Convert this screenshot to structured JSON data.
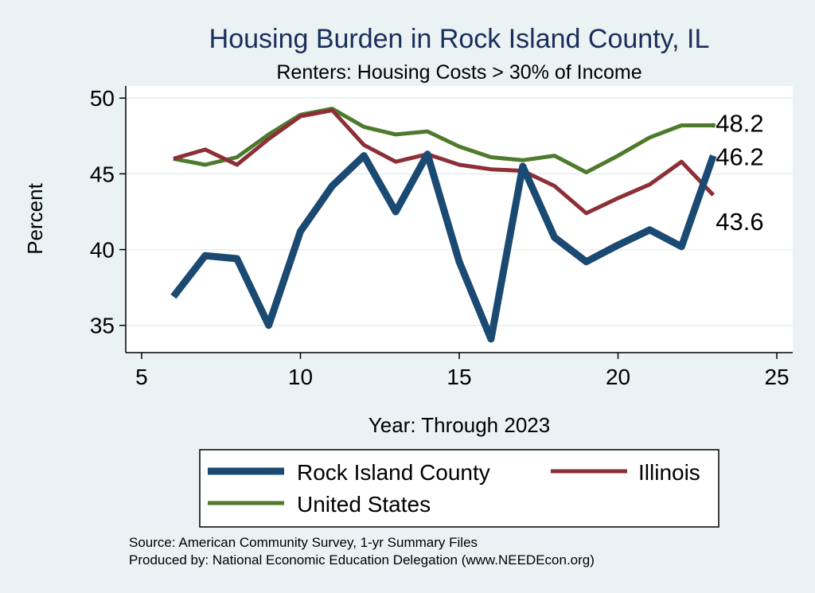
{
  "chart_data": {
    "type": "line",
    "title": "Housing Burden in Rock Island County, IL",
    "subtitle": "Renters: Housing Costs > 30% of Income",
    "xlabel": "Year: Through 2023",
    "ylabel": "Percent",
    "xlim": [
      4.5,
      25.5
    ],
    "ylim": [
      33.2,
      50.8
    ],
    "xticks": [
      5,
      10,
      15,
      20,
      25
    ],
    "yticks": [
      35,
      40,
      45,
      50
    ],
    "grid": true,
    "legend_position": "bottom",
    "x": [
      6,
      7,
      8,
      9,
      10,
      11,
      12,
      13,
      14,
      15,
      16,
      17,
      18,
      19,
      20,
      21,
      22,
      23
    ],
    "series": [
      {
        "name": "Rock Island County",
        "color": "#1a4a72",
        "values": [
          36.9,
          39.6,
          39.4,
          35.0,
          41.2,
          44.2,
          46.2,
          42.5,
          46.3,
          39.2,
          34.1,
          45.5,
          40.8,
          39.2,
          40.3,
          41.3,
          40.2,
          46.2
        ],
        "end_label": "46.2"
      },
      {
        "name": "Illinois",
        "color": "#8c2f36",
        "values": [
          46.0,
          46.6,
          45.6,
          47.3,
          48.8,
          49.2,
          46.9,
          45.8,
          46.3,
          45.6,
          45.3,
          45.2,
          44.2,
          42.4,
          43.4,
          44.3,
          45.8,
          43.6
        ],
        "end_label": "43.6"
      },
      {
        "name": "United States",
        "color": "#4e7a2d",
        "values": [
          46.0,
          45.6,
          46.1,
          47.6,
          48.9,
          49.3,
          48.1,
          47.6,
          47.8,
          46.8,
          46.1,
          45.9,
          46.2,
          45.1,
          46.2,
          47.4,
          48.2,
          48.2
        ],
        "end_label": "48.2"
      }
    ],
    "footer": {
      "source": "Source: American Community Survey, 1-yr Summary Files",
      "produced_by": "Produced by: National Economic Education Delegation (www.NEEDEcon.org)"
    }
  }
}
